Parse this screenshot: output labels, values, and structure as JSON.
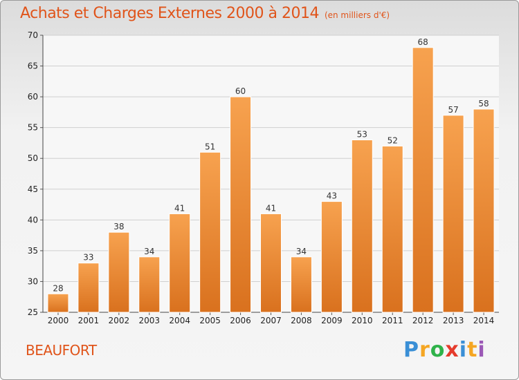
{
  "title": "Achats et Charges Externes 2000 à 2014",
  "unit_label": "(en milliers d'€)",
  "place_name": "BEAUFORT",
  "brand": {
    "letters": [
      "P",
      "r",
      "o",
      "x",
      "i",
      "t",
      "i"
    ],
    "colors": [
      "#3a8fd6",
      "#f5a623",
      "#2fb24a",
      "#e53b2c",
      "#3a8fd6",
      "#f5a623",
      "#9b59b6"
    ]
  },
  "colors": {
    "accent": "#e0541a",
    "bar_top": "#f7a24f",
    "bar_bottom": "#d9711e"
  },
  "chart_data": {
    "type": "bar",
    "title": "Achats et Charges Externes 2000 à 2014",
    "subtitle": "(en milliers d'€)",
    "categories": [
      "2000",
      "2001",
      "2002",
      "2003",
      "2004",
      "2005",
      "2006",
      "2007",
      "2008",
      "2009",
      "2010",
      "2011",
      "2012",
      "2013",
      "2014"
    ],
    "values": [
      28,
      33,
      38,
      34,
      41,
      51,
      60,
      41,
      34,
      43,
      53,
      52,
      68,
      57,
      58
    ],
    "xlabel": "",
    "ylabel": "",
    "ylim": [
      25,
      70
    ],
    "yticks": [
      25,
      30,
      35,
      40,
      45,
      50,
      55,
      60,
      65,
      70
    ],
    "grid": true,
    "data_labels": true
  }
}
